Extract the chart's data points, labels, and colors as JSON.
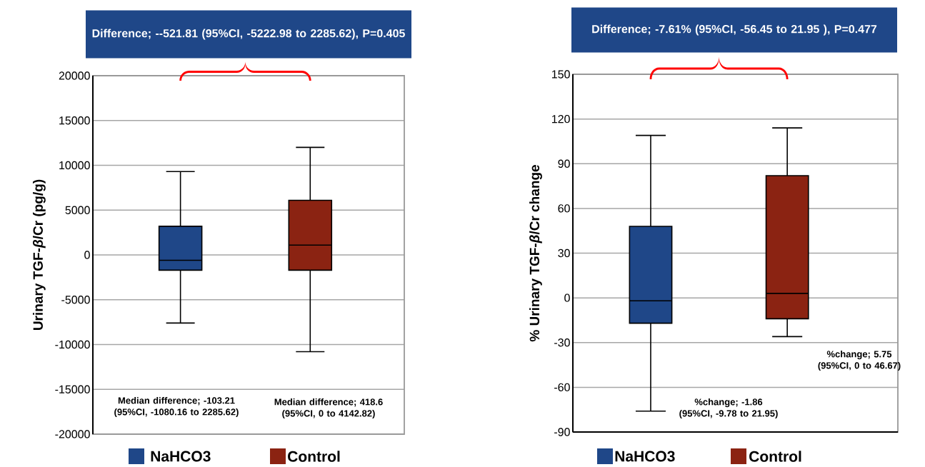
{
  "chart_data": [
    {
      "type": "box",
      "title": "Difference; --521.81 (95%CI, -5222.98 to 2285.62), P=0.405",
      "ylabel": "Urinary TGF-*β*/Cr (pg/g)",
      "categories": [
        null,
        null
      ],
      "series": [
        {
          "name": "NaHCO3",
          "color": "#1f4788",
          "boxes": [
            {
              "low": -7600,
              "q1": -1700,
              "median": -600,
              "q3": 3200,
              "high": 9300
            },
            null
          ]
        },
        {
          "name": "Control",
          "color": "#8b2312",
          "boxes": [
            null,
            {
              "low": -10800,
              "q1": -1700,
              "median": 1100,
              "q3": 6100,
              "high": 12000
            }
          ]
        }
      ],
      "ylim": [
        -20000,
        20000
      ],
      "yticks": [
        -20000,
        -15000,
        -10000,
        -5000,
        0,
        5000,
        10000,
        15000,
        20000
      ],
      "annotations": [
        "Median difference; -103.21 (95%CI, -1080.16 to 2285.62)",
        "Median difference; 418.6 (95%CI, 0 to 4142.82)"
      ],
      "grid": "y",
      "legend": "bottom",
      "tick_labels": "y"
    },
    {
      "type": "box",
      "title": "Difference; -7.61% (95%CI, -56.45 to 21.95 ), P=0.477",
      "ylabel": "% Urinary TGF-*β*/Cr change",
      "categories": [
        null,
        null
      ],
      "series": [
        {
          "name": "NaHCO3",
          "color": "#1f4788",
          "boxes": [
            {
              "low": -76,
              "q1": -17,
              "median": -2,
              "q3": 48,
              "high": 109
            },
            null
          ]
        },
        {
          "name": "Control",
          "color": "#8b2312",
          "boxes": [
            null,
            {
              "low": -26,
              "q1": -14,
              "median": 3,
              "q3": 82,
              "high": 114
            }
          ]
        }
      ],
      "ylim": [
        -90,
        150
      ],
      "yticks": [
        -90,
        -60,
        -30,
        0,
        30,
        60,
        90,
        120,
        150
      ],
      "annotations": [
        "%change; -1.86 (95%CI, -9.78 to 21.95)",
        "%change; 5.75 (95%CI, 0 to 46.67)"
      ],
      "grid": "y",
      "legend": "bottom",
      "tick_labels": "y"
    }
  ]
}
